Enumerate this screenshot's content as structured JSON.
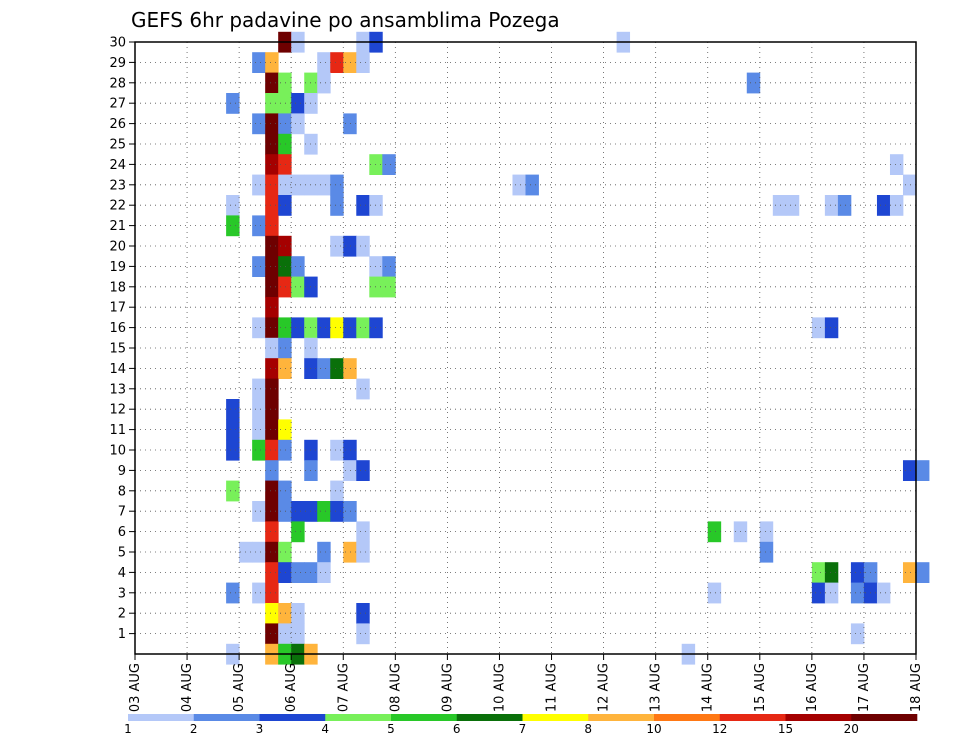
{
  "chart_data": {
    "type": "heatmap",
    "title": "GEFS 6hr padavine po ansamblima Pozega",
    "x_tick_labels": [
      "03 AUG",
      "04 AUG",
      "05 AUG",
      "06 AUG",
      "07 AUG",
      "08 AUG",
      "09 AUG",
      "10 AUG",
      "11 AUG",
      "12 AUG",
      "13 AUG",
      "14 AUG",
      "15 AUG",
      "16 AUG",
      "17 AUG",
      "18 AUG"
    ],
    "y_tick_labels": [
      "1",
      "2",
      "3",
      "4",
      "5",
      "6",
      "7",
      "8",
      "9",
      "10",
      "11",
      "12",
      "13",
      "14",
      "15",
      "16",
      "17",
      "18",
      "19",
      "20",
      "21",
      "22",
      "23",
      "24",
      "25",
      "26",
      "27",
      "28",
      "29",
      "30"
    ],
    "x_step_hours": 6,
    "ensemble_member_range": [
      0,
      30
    ],
    "grid": true,
    "colorbar": {
      "placement": "bottom",
      "tick_labels": [
        "1",
        "2",
        "3",
        "4",
        "5",
        "6",
        "7",
        "8",
        "10",
        "12",
        "15",
        "20"
      ],
      "colors": [
        "#b4c8f8",
        "#5a8ae6",
        "#1e46d2",
        "#78f05a",
        "#28c828",
        "#0a700a",
        "#ffff00",
        "#ffb43c",
        "#ff7814",
        "#e62814",
        "#a50000",
        "#6e0000"
      ]
    },
    "cells_note_format": "[member, step, level]",
    "cells": [
      [
        30,
        11,
        11
      ],
      [
        30,
        12,
        0
      ],
      [
        30,
        17,
        0
      ],
      [
        30,
        18,
        2
      ],
      [
        30,
        37,
        0
      ],
      [
        29,
        9,
        1
      ],
      [
        29,
        10,
        7
      ],
      [
        29,
        14,
        0
      ],
      [
        29,
        15,
        9
      ],
      [
        29,
        16,
        7
      ],
      [
        29,
        17,
        0
      ],
      [
        28,
        10,
        11
      ],
      [
        28,
        11,
        3
      ],
      [
        28,
        13,
        3
      ],
      [
        28,
        14,
        0
      ],
      [
        28,
        47,
        1
      ],
      [
        27,
        7,
        1
      ],
      [
        27,
        10,
        3
      ],
      [
        27,
        11,
        3
      ],
      [
        27,
        12,
        2
      ],
      [
        27,
        13,
        0
      ],
      [
        26,
        9,
        1
      ],
      [
        26,
        10,
        11
      ],
      [
        26,
        11,
        1
      ],
      [
        26,
        12,
        0
      ],
      [
        26,
        16,
        1
      ],
      [
        25,
        10,
        11
      ],
      [
        25,
        11,
        4
      ],
      [
        25,
        13,
        0
      ],
      [
        24,
        10,
        10
      ],
      [
        24,
        11,
        9
      ],
      [
        24,
        18,
        3
      ],
      [
        24,
        19,
        1
      ],
      [
        24,
        58,
        0
      ],
      [
        23,
        9,
        0
      ],
      [
        23,
        10,
        9
      ],
      [
        23,
        11,
        0
      ],
      [
        23,
        12,
        0
      ],
      [
        23,
        13,
        0
      ],
      [
        23,
        14,
        0
      ],
      [
        23,
        15,
        1
      ],
      [
        23,
        29,
        0
      ],
      [
        23,
        30,
        1
      ],
      [
        23,
        59,
        0
      ],
      [
        22,
        7,
        0
      ],
      [
        22,
        10,
        9
      ],
      [
        22,
        11,
        2
      ],
      [
        22,
        15,
        1
      ],
      [
        22,
        17,
        2
      ],
      [
        22,
        18,
        0
      ],
      [
        22,
        49,
        0
      ],
      [
        22,
        50,
        0
      ],
      [
        22,
        53,
        0
      ],
      [
        22,
        54,
        1
      ],
      [
        22,
        57,
        2
      ],
      [
        22,
        58,
        0
      ],
      [
        21,
        7,
        4
      ],
      [
        21,
        9,
        1
      ],
      [
        21,
        10,
        9
      ],
      [
        20,
        10,
        11
      ],
      [
        20,
        11,
        10
      ],
      [
        20,
        15,
        0
      ],
      [
        20,
        16,
        2
      ],
      [
        20,
        17,
        0
      ],
      [
        19,
        9,
        1
      ],
      [
        19,
        10,
        11
      ],
      [
        19,
        11,
        5
      ],
      [
        19,
        12,
        1
      ],
      [
        19,
        18,
        0
      ],
      [
        19,
        19,
        1
      ],
      [
        18,
        10,
        11
      ],
      [
        18,
        11,
        9
      ],
      [
        18,
        12,
        3
      ],
      [
        18,
        13,
        2
      ],
      [
        18,
        18,
        3
      ],
      [
        18,
        19,
        3
      ],
      [
        17,
        10,
        10
      ],
      [
        16,
        9,
        0
      ],
      [
        16,
        10,
        11
      ],
      [
        16,
        11,
        4
      ],
      [
        16,
        12,
        2
      ],
      [
        16,
        13,
        3
      ],
      [
        16,
        14,
        2
      ],
      [
        16,
        15,
        6
      ],
      [
        16,
        16,
        2
      ],
      [
        16,
        17,
        3
      ],
      [
        16,
        18,
        2
      ],
      [
        16,
        52,
        0
      ],
      [
        16,
        53,
        2
      ],
      [
        15,
        10,
        0
      ],
      [
        15,
        11,
        1
      ],
      [
        15,
        13,
        0
      ],
      [
        14,
        10,
        10
      ],
      [
        14,
        11,
        7
      ],
      [
        14,
        13,
        2
      ],
      [
        14,
        14,
        1
      ],
      [
        14,
        15,
        5
      ],
      [
        14,
        16,
        7
      ],
      [
        13,
        9,
        0
      ],
      [
        13,
        10,
        11
      ],
      [
        13,
        17,
        0
      ],
      [
        12,
        7,
        2
      ],
      [
        12,
        9,
        0
      ],
      [
        12,
        10,
        11
      ],
      [
        11,
        7,
        2
      ],
      [
        11,
        9,
        0
      ],
      [
        11,
        10,
        11
      ],
      [
        11,
        11,
        6
      ],
      [
        10,
        7,
        2
      ],
      [
        10,
        9,
        4
      ],
      [
        10,
        10,
        9
      ],
      [
        10,
        11,
        1
      ],
      [
        10,
        13,
        2
      ],
      [
        10,
        15,
        0
      ],
      [
        10,
        16,
        2
      ],
      [
        9,
        10,
        1
      ],
      [
        9,
        13,
        1
      ],
      [
        9,
        16,
        0
      ],
      [
        9,
        17,
        2
      ],
      [
        9,
        59,
        2
      ],
      [
        9,
        60,
        1
      ],
      [
        8,
        7,
        3
      ],
      [
        8,
        10,
        11
      ],
      [
        8,
        11,
        1
      ],
      [
        8,
        15,
        0
      ],
      [
        7,
        9,
        0
      ],
      [
        7,
        10,
        11
      ],
      [
        7,
        11,
        1
      ],
      [
        7,
        12,
        2
      ],
      [
        7,
        13,
        2
      ],
      [
        7,
        14,
        4
      ],
      [
        7,
        15,
        2
      ],
      [
        7,
        16,
        1
      ],
      [
        6,
        10,
        9
      ],
      [
        6,
        12,
        4
      ],
      [
        6,
        17,
        0
      ],
      [
        6,
        44,
        4
      ],
      [
        6,
        46,
        0
      ],
      [
        6,
        48,
        0
      ],
      [
        5,
        8,
        0
      ],
      [
        5,
        9,
        0
      ],
      [
        5,
        10,
        11
      ],
      [
        5,
        11,
        3
      ],
      [
        5,
        14,
        1
      ],
      [
        5,
        16,
        7
      ],
      [
        5,
        17,
        0
      ],
      [
        5,
        48,
        1
      ],
      [
        4,
        10,
        9
      ],
      [
        4,
        11,
        2
      ],
      [
        4,
        12,
        1
      ],
      [
        4,
        13,
        1
      ],
      [
        4,
        14,
        0
      ],
      [
        4,
        52,
        3
      ],
      [
        4,
        53,
        5
      ],
      [
        4,
        55,
        2
      ],
      [
        4,
        56,
        1
      ],
      [
        4,
        59,
        7
      ],
      [
        4,
        60,
        1
      ],
      [
        3,
        7,
        1
      ],
      [
        3,
        9,
        0
      ],
      [
        3,
        10,
        9
      ],
      [
        3,
        44,
        0
      ],
      [
        3,
        52,
        2
      ],
      [
        3,
        53,
        0
      ],
      [
        3,
        55,
        1
      ],
      [
        3,
        56,
        2
      ],
      [
        3,
        57,
        0
      ],
      [
        2,
        10,
        6
      ],
      [
        2,
        11,
        7
      ],
      [
        2,
        12,
        0
      ],
      [
        2,
        17,
        2
      ],
      [
        1,
        10,
        11
      ],
      [
        1,
        11,
        0
      ],
      [
        1,
        12,
        0
      ],
      [
        1,
        17,
        0
      ],
      [
        1,
        55,
        0
      ],
      [
        0,
        7,
        0
      ],
      [
        0,
        10,
        7
      ],
      [
        0,
        11,
        4
      ],
      [
        0,
        12,
        5
      ],
      [
        0,
        13,
        7
      ],
      [
        0,
        42,
        0
      ]
    ]
  }
}
